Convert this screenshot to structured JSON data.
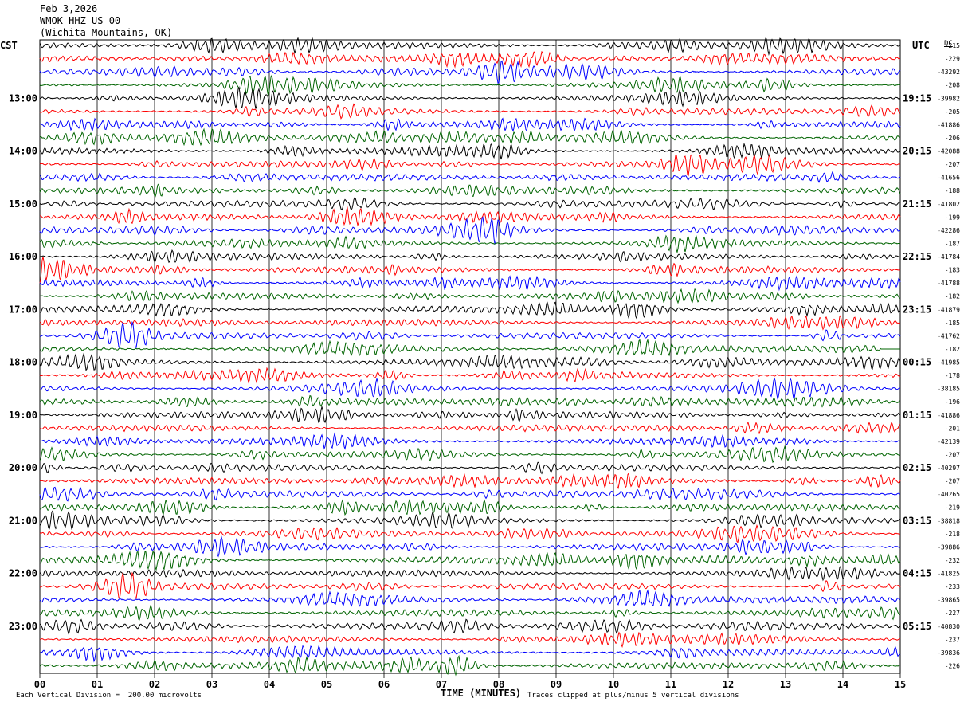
{
  "header": {
    "date": "Feb 3,2026",
    "station": "WMOK HHZ US 00",
    "location": "(Wichita Mountains, OK)"
  },
  "left_zone_label": "CST",
  "right_zone_label": "UTC",
  "dc_label": "DC",
  "footer": {
    "scale": "Each Vertical Division =  200.00 microvolts",
    "clip": "Traces clipped at plus/minus 5 vertical divisions"
  },
  "colors": {
    "trace_cycle": [
      "#000000",
      "#ff0000",
      "#0000ff",
      "#006400"
    ],
    "grid": "#000000"
  },
  "chart_data": {
    "type": "line",
    "xlabel": "TIME (MINUTES)",
    "xlim": [
      0,
      15
    ],
    "x_ticks": [
      "00",
      "01",
      "02",
      "03",
      "04",
      "05",
      "06",
      "07",
      "08",
      "09",
      "10",
      "11",
      "12",
      "13",
      "14",
      "15"
    ],
    "traces_per_hour": 4,
    "minutes_per_trace": 15,
    "left_hour_labels": [
      "13:00",
      "14:00",
      "15:00",
      "16:00",
      "17:00",
      "18:00",
      "19:00",
      "20:00",
      "21:00",
      "22:00",
      "23:00"
    ],
    "right_hour_labels": [
      "19:15",
      "20:15",
      "21:15",
      "22:15",
      "23:15",
      "00:15",
      "01:15",
      "02:15",
      "03:15",
      "04:15",
      "05:15"
    ],
    "dc_offsets": [
      "-215",
      "-229",
      "-43292",
      "-208",
      "-39982",
      "-205",
      "-41886",
      "-206",
      "-42088",
      "-207",
      "-41656",
      "-188",
      "-41802",
      "-199",
      "-42286",
      "-187",
      "-41784",
      "-183",
      "-41788",
      "-182",
      "-41879",
      "-185",
      "-41762",
      "-182",
      "-41985",
      "-178",
      "-38185",
      "-196",
      "-41886",
      "-201",
      "-42139",
      "-207",
      "-40297",
      "-207",
      "-40265",
      "-219",
      "-38818",
      "-218",
      "-39886",
      "-232",
      "-41825",
      "-233",
      "-39865",
      "-227",
      "-40830",
      "-237",
      "-39836",
      "-226"
    ]
  }
}
